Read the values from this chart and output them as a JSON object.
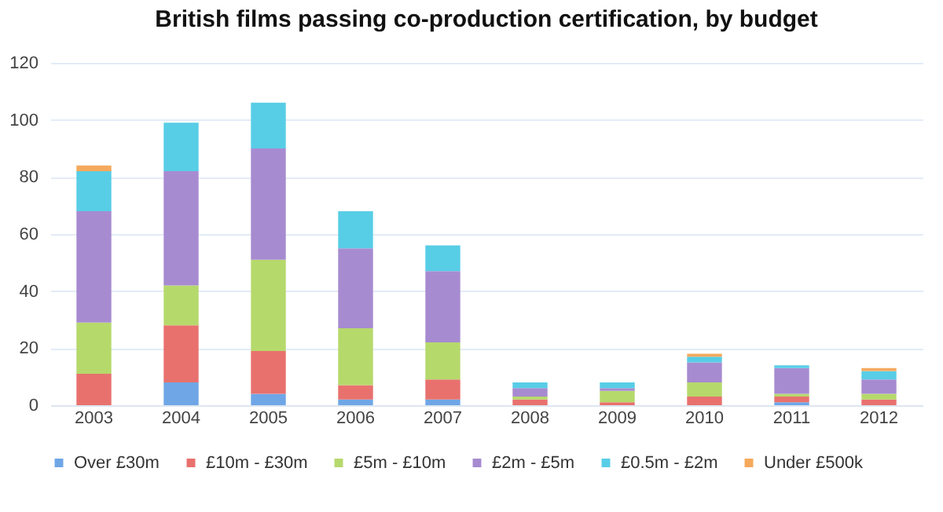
{
  "chart_data": {
    "type": "bar",
    "stacked": true,
    "title": "British films passing co-production certification, by budget",
    "categories": [
      "2003",
      "2004",
      "2005",
      "2006",
      "2007",
      "2008",
      "2009",
      "2010",
      "2011",
      "2012"
    ],
    "series": [
      {
        "name": "Over £30m",
        "color": "#6fa6e6",
        "values": [
          0,
          8,
          4,
          2,
          2,
          0,
          0,
          0,
          1,
          0
        ]
      },
      {
        "name": "£10m - £30m",
        "color": "#e8716e",
        "values": [
          11,
          20,
          15,
          5,
          7,
          2,
          1,
          3,
          2,
          2
        ]
      },
      {
        "name": "£5m - £10m",
        "color": "#b6d96c",
        "values": [
          18,
          14,
          32,
          20,
          13,
          1,
          4,
          5,
          1,
          2
        ]
      },
      {
        "name": "£2m - £5m",
        "color": "#a78bd0",
        "values": [
          39,
          40,
          39,
          28,
          25,
          3,
          1,
          7,
          9,
          5
        ]
      },
      {
        "name": "£0.5m - £2m",
        "color": "#58cde6",
        "values": [
          14,
          17,
          16,
          13,
          9,
          2,
          2,
          2,
          1,
          3
        ]
      },
      {
        "name": "Under £500k",
        "color": "#f5a95c",
        "values": [
          2,
          0,
          0,
          0,
          0,
          0,
          0,
          1,
          0,
          1
        ]
      }
    ],
    "ylim": [
      0,
      120
    ],
    "yticks": [
      0,
      20,
      40,
      60,
      80,
      100,
      120
    ],
    "grid": "y",
    "legend": "bottom"
  }
}
